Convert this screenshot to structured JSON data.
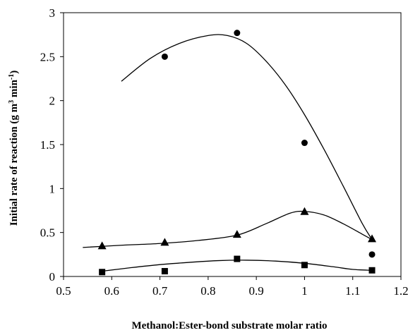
{
  "chart_data": {
    "type": "scatter",
    "title": "",
    "xlabel": "Methanol:Ester-bond substrate molar ratio",
    "ylabel": "Initial rate of reaction (g m³ min⁻¹)",
    "ylabel_parts": {
      "base": "Initial rate of reaction (g m",
      "sup1": "3",
      "mid": " min",
      "sup2": "-1",
      "end": ")"
    },
    "xlim": [
      0.5,
      1.2
    ],
    "ylim": [
      0,
      3
    ],
    "xticks": [
      0.5,
      0.6,
      0.7,
      0.8,
      0.9,
      1,
      1.1,
      1.2
    ],
    "yticks": [
      0,
      0.5,
      1,
      1.5,
      2,
      2.5,
      3
    ],
    "xtick_labels": [
      "0.5",
      "0.6",
      "0.7",
      "0.8",
      "0.9",
      "1",
      "1.1",
      "1.2"
    ],
    "ytick_labels": [
      "0",
      "0.5",
      "1",
      "1.5",
      "2",
      "2.5",
      "3"
    ],
    "grid": false,
    "legend": "none",
    "series": [
      {
        "marker": "circle",
        "points": [
          [
            0.71,
            2.5
          ],
          [
            0.86,
            2.77
          ],
          [
            1.0,
            1.52
          ],
          [
            1.14,
            0.25
          ]
        ],
        "fit_curve": [
          [
            0.62,
            2.22
          ],
          [
            0.68,
            2.48
          ],
          [
            0.74,
            2.65
          ],
          [
            0.8,
            2.74
          ],
          [
            0.84,
            2.74
          ],
          [
            0.88,
            2.65
          ],
          [
            0.92,
            2.45
          ],
          [
            0.96,
            2.18
          ],
          [
            1.0,
            1.84
          ],
          [
            1.04,
            1.45
          ],
          [
            1.08,
            1.03
          ],
          [
            1.12,
            0.6
          ],
          [
            1.14,
            0.42
          ]
        ]
      },
      {
        "marker": "triangle",
        "points": [
          [
            0.58,
            0.35
          ],
          [
            0.71,
            0.39
          ],
          [
            0.86,
            0.48
          ],
          [
            1.0,
            0.74
          ],
          [
            1.14,
            0.43
          ]
        ],
        "fit_curve": [
          [
            0.54,
            0.33
          ],
          [
            0.62,
            0.355
          ],
          [
            0.7,
            0.375
          ],
          [
            0.78,
            0.41
          ],
          [
            0.86,
            0.47
          ],
          [
            0.92,
            0.6
          ],
          [
            0.97,
            0.72
          ],
          [
            1.0,
            0.74
          ],
          [
            1.04,
            0.7
          ],
          [
            1.08,
            0.6
          ],
          [
            1.12,
            0.48
          ],
          [
            1.14,
            0.42
          ]
        ]
      },
      {
        "marker": "square",
        "points": [
          [
            0.58,
            0.05
          ],
          [
            0.71,
            0.06
          ],
          [
            0.86,
            0.2
          ],
          [
            1.0,
            0.13
          ],
          [
            1.14,
            0.07
          ]
        ],
        "fit_curve": [
          [
            0.58,
            0.06
          ],
          [
            0.64,
            0.1
          ],
          [
            0.7,
            0.135
          ],
          [
            0.76,
            0.16
          ],
          [
            0.82,
            0.18
          ],
          [
            0.88,
            0.185
          ],
          [
            0.94,
            0.175
          ],
          [
            1.0,
            0.15
          ],
          [
            1.06,
            0.11
          ],
          [
            1.1,
            0.08
          ],
          [
            1.14,
            0.07
          ]
        ]
      }
    ]
  }
}
